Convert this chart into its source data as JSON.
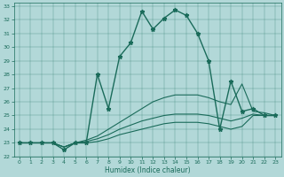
{
  "xlabel": "Humidex (Indice chaleur)",
  "xlim": [
    -0.5,
    23.5
  ],
  "ylim": [
    22,
    33.2
  ],
  "yticks": [
    22,
    23,
    24,
    25,
    26,
    27,
    28,
    29,
    30,
    31,
    32,
    33
  ],
  "xticks": [
    0,
    1,
    2,
    3,
    4,
    5,
    6,
    7,
    8,
    9,
    10,
    11,
    12,
    13,
    14,
    15,
    16,
    17,
    18,
    19,
    20,
    21,
    22,
    23
  ],
  "bg_color": "#b2d8d8",
  "line_color": "#1a6b5a",
  "series": [
    {
      "x": [
        0,
        1,
        2,
        3,
        4,
        5,
        6,
        7,
        8,
        9,
        10,
        11,
        12,
        13,
        14,
        15,
        16,
        17,
        18,
        19,
        20,
        21,
        22,
        23
      ],
      "y": [
        23.0,
        23.0,
        23.0,
        23.0,
        22.5,
        23.0,
        23.0,
        28.0,
        25.5,
        29.3,
        30.3,
        32.6,
        31.3,
        32.1,
        32.7,
        32.3,
        31.0,
        29.0,
        24.0,
        27.5,
        25.3,
        25.5,
        25.0,
        25.0
      ],
      "marker": "*",
      "markersize": 3.5,
      "linewidth": 1.0
    },
    {
      "x": [
        0,
        1,
        2,
        3,
        4,
        5,
        6,
        7,
        8,
        9,
        10,
        11,
        12,
        13,
        14,
        15,
        16,
        17,
        18,
        19,
        20,
        21,
        22,
        23
      ],
      "y": [
        23.0,
        23.0,
        23.0,
        23.0,
        22.7,
        23.0,
        23.2,
        23.5,
        24.0,
        24.5,
        25.0,
        25.5,
        26.0,
        26.3,
        26.5,
        26.5,
        26.5,
        26.3,
        26.0,
        25.8,
        27.3,
        25.3,
        25.2,
        25.0
      ],
      "marker": null,
      "linewidth": 0.8
    },
    {
      "x": [
        0,
        1,
        2,
        3,
        4,
        5,
        6,
        7,
        8,
        9,
        10,
        11,
        12,
        13,
        14,
        15,
        16,
        17,
        18,
        19,
        20,
        21,
        22,
        23
      ],
      "y": [
        23.0,
        23.0,
        23.0,
        23.0,
        22.7,
        23.0,
        23.1,
        23.3,
        23.6,
        24.0,
        24.3,
        24.6,
        24.8,
        25.0,
        25.1,
        25.1,
        25.1,
        25.0,
        24.8,
        24.6,
        24.8,
        25.1,
        25.0,
        25.0
      ],
      "marker": null,
      "linewidth": 0.8
    },
    {
      "x": [
        0,
        1,
        2,
        3,
        4,
        5,
        6,
        7,
        8,
        9,
        10,
        11,
        12,
        13,
        14,
        15,
        16,
        17,
        18,
        19,
        20,
        21,
        22,
        23
      ],
      "y": [
        23.0,
        23.0,
        23.0,
        23.0,
        22.7,
        23.0,
        23.0,
        23.1,
        23.3,
        23.6,
        23.8,
        24.0,
        24.2,
        24.4,
        24.5,
        24.5,
        24.5,
        24.4,
        24.2,
        24.0,
        24.2,
        25.0,
        25.0,
        25.0
      ],
      "marker": null,
      "linewidth": 0.8
    }
  ]
}
